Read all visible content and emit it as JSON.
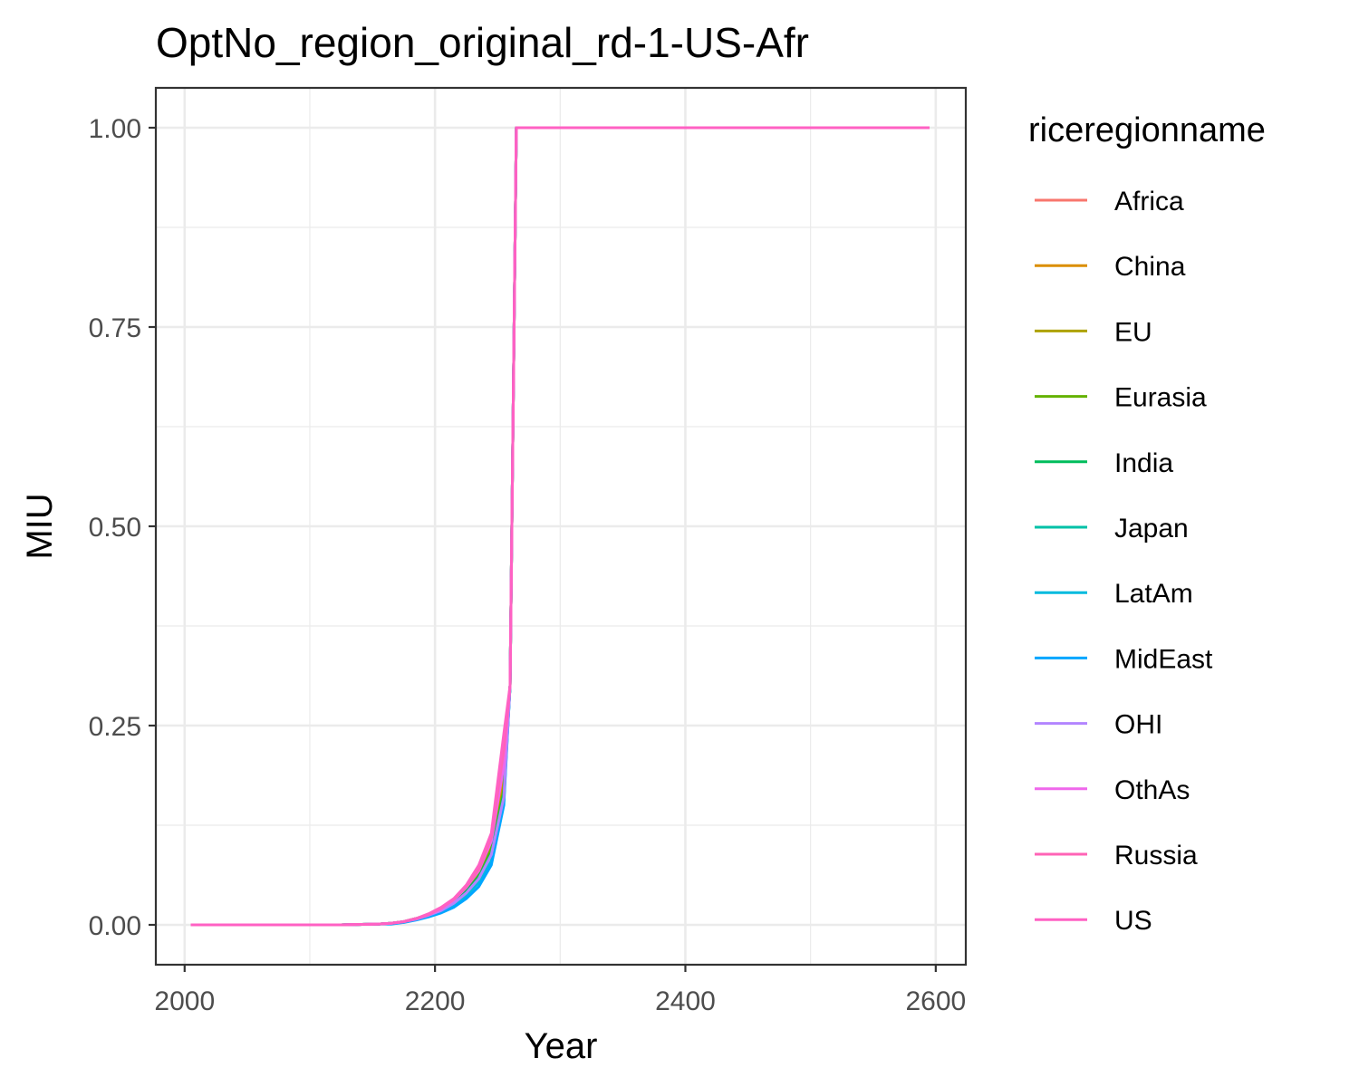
{
  "chart_data": {
    "type": "line",
    "title": "OptNo_region_original_rd-1-US-Afr",
    "xlabel": "Year",
    "ylabel": "MIU",
    "xlim": [
      1977,
      2624
    ],
    "ylim": [
      -0.05,
      1.05
    ],
    "x_ticks": [
      2000,
      2200,
      2400,
      2600
    ],
    "y_ticks": [
      0,
      0.25,
      0.5,
      0.75,
      1
    ],
    "y_tick_labels": [
      "0.00",
      "0.25",
      "0.50",
      "0.75",
      "1.00"
    ],
    "grid": true,
    "legend": {
      "title": "riceregionname",
      "position": "right"
    },
    "series": [
      {
        "name": "Africa",
        "color": "#F8766D",
        "points": [
          [
            2005,
            0
          ],
          [
            2125,
            0
          ],
          [
            2155,
            0.001
          ],
          [
            2165,
            0.002
          ],
          [
            2175,
            0.004
          ],
          [
            2185,
            0.008
          ],
          [
            2195,
            0.013
          ],
          [
            2205,
            0.02
          ],
          [
            2215,
            0.03
          ],
          [
            2225,
            0.045
          ],
          [
            2235,
            0.065
          ],
          [
            2245,
            0.1
          ],
          [
            2255,
            0.19
          ],
          [
            2260,
            0.3
          ],
          [
            2265,
            1
          ],
          [
            2595,
            1
          ]
        ]
      },
      {
        "name": "China",
        "color": "#DB8E00",
        "points": [
          [
            2005,
            0
          ],
          [
            2125,
            0
          ],
          [
            2155,
            0.001
          ],
          [
            2165,
            0.002
          ],
          [
            2175,
            0.004
          ],
          [
            2185,
            0.008
          ],
          [
            2195,
            0.013
          ],
          [
            2205,
            0.02
          ],
          [
            2215,
            0.03
          ],
          [
            2225,
            0.045
          ],
          [
            2235,
            0.065
          ],
          [
            2245,
            0.1
          ],
          [
            2255,
            0.18
          ],
          [
            2260,
            0.3
          ],
          [
            2265,
            1
          ],
          [
            2595,
            1
          ]
        ]
      },
      {
        "name": "EU",
        "color": "#AEA200",
        "points": [
          [
            2005,
            0
          ],
          [
            2125,
            0
          ],
          [
            2155,
            0.001
          ],
          [
            2165,
            0.002
          ],
          [
            2175,
            0.004
          ],
          [
            2185,
            0.008
          ],
          [
            2195,
            0.013
          ],
          [
            2205,
            0.02
          ],
          [
            2215,
            0.029
          ],
          [
            2225,
            0.043
          ],
          [
            2235,
            0.062
          ],
          [
            2245,
            0.095
          ],
          [
            2255,
            0.17
          ],
          [
            2260,
            0.3
          ],
          [
            2265,
            1
          ],
          [
            2595,
            1
          ]
        ]
      },
      {
        "name": "Eurasia",
        "color": "#64B200",
        "points": [
          [
            2005,
            0
          ],
          [
            2125,
            0
          ],
          [
            2155,
            0.001
          ],
          [
            2165,
            0.002
          ],
          [
            2175,
            0.004
          ],
          [
            2185,
            0.008
          ],
          [
            2195,
            0.013
          ],
          [
            2205,
            0.02
          ],
          [
            2215,
            0.03
          ],
          [
            2225,
            0.044
          ],
          [
            2235,
            0.063
          ],
          [
            2245,
            0.095
          ],
          [
            2255,
            0.17
          ],
          [
            2260,
            0.3
          ],
          [
            2265,
            1
          ],
          [
            2595,
            1
          ]
        ]
      },
      {
        "name": "India",
        "color": "#00BD5C",
        "points": [
          [
            2005,
            0
          ],
          [
            2125,
            0
          ],
          [
            2155,
            0.001
          ],
          [
            2165,
            0.002
          ],
          [
            2175,
            0.004
          ],
          [
            2185,
            0.008
          ],
          [
            2195,
            0.012
          ],
          [
            2205,
            0.019
          ],
          [
            2215,
            0.028
          ],
          [
            2225,
            0.042
          ],
          [
            2235,
            0.06
          ],
          [
            2245,
            0.09
          ],
          [
            2255,
            0.165
          ],
          [
            2260,
            0.3
          ],
          [
            2265,
            1
          ],
          [
            2595,
            1
          ]
        ]
      },
      {
        "name": "Japan",
        "color": "#00C1A7",
        "points": [
          [
            2005,
            0
          ],
          [
            2125,
            0
          ],
          [
            2155,
            0.001
          ],
          [
            2165,
            0.002
          ],
          [
            2175,
            0.004
          ],
          [
            2185,
            0.007
          ],
          [
            2195,
            0.012
          ],
          [
            2205,
            0.018
          ],
          [
            2215,
            0.027
          ],
          [
            2225,
            0.04
          ],
          [
            2235,
            0.058
          ],
          [
            2245,
            0.088
          ],
          [
            2255,
            0.16
          ],
          [
            2260,
            0.3
          ],
          [
            2265,
            1
          ],
          [
            2595,
            1
          ]
        ]
      },
      {
        "name": "LatAm",
        "color": "#00BADE",
        "points": [
          [
            2005,
            0
          ],
          [
            2125,
            0
          ],
          [
            2155,
            0.001
          ],
          [
            2165,
            0.002
          ],
          [
            2175,
            0.004
          ],
          [
            2185,
            0.007
          ],
          [
            2195,
            0.011
          ],
          [
            2205,
            0.017
          ],
          [
            2215,
            0.025
          ],
          [
            2225,
            0.037
          ],
          [
            2235,
            0.053
          ],
          [
            2245,
            0.08
          ],
          [
            2255,
            0.155
          ],
          [
            2260,
            0.3
          ],
          [
            2265,
            1
          ],
          [
            2595,
            1
          ]
        ]
      },
      {
        "name": "MidEast",
        "color": "#00A6FF",
        "points": [
          [
            2005,
            0
          ],
          [
            2125,
            0
          ],
          [
            2155,
            0.001
          ],
          [
            2165,
            0.001
          ],
          [
            2175,
            0.003
          ],
          [
            2185,
            0.006
          ],
          [
            2195,
            0.01
          ],
          [
            2205,
            0.015
          ],
          [
            2215,
            0.022
          ],
          [
            2225,
            0.033
          ],
          [
            2235,
            0.048
          ],
          [
            2245,
            0.075
          ],
          [
            2255,
            0.15
          ],
          [
            2260,
            0.3
          ],
          [
            2265,
            1
          ],
          [
            2595,
            1
          ]
        ]
      },
      {
        "name": "OHI",
        "color": "#B385FF",
        "points": [
          [
            2005,
            0
          ],
          [
            2125,
            0
          ],
          [
            2155,
            0.001
          ],
          [
            2165,
            0.002
          ],
          [
            2175,
            0.004
          ],
          [
            2185,
            0.007
          ],
          [
            2195,
            0.012
          ],
          [
            2205,
            0.018
          ],
          [
            2215,
            0.027
          ],
          [
            2225,
            0.04
          ],
          [
            2235,
            0.058
          ],
          [
            2245,
            0.088
          ],
          [
            2255,
            0.16
          ],
          [
            2260,
            0.3
          ],
          [
            2265,
            1
          ],
          [
            2595,
            1
          ]
        ]
      },
      {
        "name": "OthAs",
        "color": "#EF67EB",
        "points": [
          [
            2005,
            0
          ],
          [
            2125,
            0
          ],
          [
            2155,
            0.001
          ],
          [
            2165,
            0.002
          ],
          [
            2175,
            0.004
          ],
          [
            2185,
            0.008
          ],
          [
            2195,
            0.013
          ],
          [
            2205,
            0.02
          ],
          [
            2215,
            0.031
          ],
          [
            2225,
            0.047
          ],
          [
            2235,
            0.068
          ],
          [
            2245,
            0.105
          ],
          [
            2255,
            0.2
          ],
          [
            2260,
            0.3
          ],
          [
            2265,
            1
          ],
          [
            2595,
            1
          ]
        ]
      },
      {
        "name": "Russia",
        "color": "#FF63B6",
        "points": [
          [
            2005,
            0
          ],
          [
            2125,
            0
          ],
          [
            2155,
            0.001
          ],
          [
            2165,
            0.002
          ],
          [
            2175,
            0.004
          ],
          [
            2185,
            0.008
          ],
          [
            2195,
            0.013
          ],
          [
            2205,
            0.021
          ],
          [
            2215,
            0.032
          ],
          [
            2225,
            0.048
          ],
          [
            2235,
            0.07
          ],
          [
            2245,
            0.11
          ],
          [
            2255,
            0.22
          ],
          [
            2260,
            0.3
          ],
          [
            2265,
            1
          ],
          [
            2595,
            1
          ]
        ]
      },
      {
        "name": "US",
        "color": "#FF61C3",
        "points": [
          [
            2005,
            0
          ],
          [
            2125,
            0
          ],
          [
            2155,
            0.001
          ],
          [
            2165,
            0.002
          ],
          [
            2175,
            0.004
          ],
          [
            2185,
            0.008
          ],
          [
            2195,
            0.014
          ],
          [
            2205,
            0.022
          ],
          [
            2215,
            0.033
          ],
          [
            2225,
            0.05
          ],
          [
            2235,
            0.075
          ],
          [
            2245,
            0.115
          ],
          [
            2255,
            0.24
          ],
          [
            2260,
            0.3
          ],
          [
            2265,
            1
          ],
          [
            2595,
            1
          ]
        ]
      }
    ]
  }
}
